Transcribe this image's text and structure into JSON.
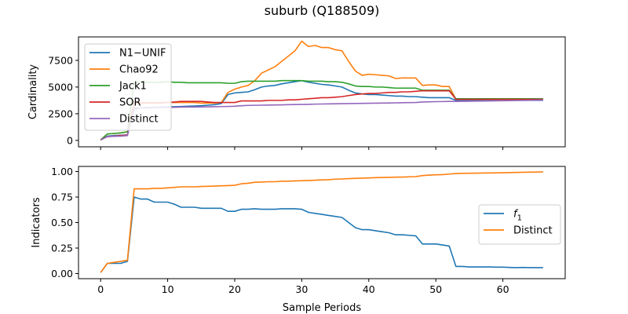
{
  "title": "suburb (Q188509)",
  "chart_data": [
    {
      "type": "line",
      "xlabel": "",
      "ylabel": "Cardinality",
      "xlim": [
        -3.3,
        69.3
      ],
      "ylim": [
        -600,
        9700
      ],
      "xticks": [
        0,
        10,
        20,
        30,
        40,
        50,
        60
      ],
      "show_xtick_labels": false,
      "yticks": [
        0,
        2500,
        5000,
        7500
      ],
      "ytick_labels": [
        "0",
        "2500",
        "5000",
        "7500"
      ],
      "legend_position": "top-left",
      "series": [
        {
          "name": "N1−UNIF",
          "color": "#1f77b4",
          "x": [
            0,
            1,
            2,
            3,
            4,
            5,
            6,
            7,
            8,
            9,
            10,
            11,
            12,
            13,
            14,
            15,
            16,
            17,
            18,
            19,
            20,
            21,
            22,
            23,
            24,
            25,
            26,
            27,
            28,
            29,
            30,
            31,
            32,
            33,
            34,
            35,
            36,
            37,
            38,
            39,
            40,
            41,
            42,
            43,
            44,
            45,
            46,
            47,
            48,
            49,
            50,
            51,
            52,
            53,
            54,
            55,
            56,
            57,
            58,
            59,
            60,
            61,
            62,
            63,
            64,
            65,
            66
          ],
          "y": [
            50,
            400,
            450,
            480,
            520,
            2900,
            3050,
            3080,
            3100,
            3120,
            3140,
            3160,
            3180,
            3200,
            3220,
            3250,
            3300,
            3350,
            3450,
            4300,
            4450,
            4500,
            4550,
            4750,
            5000,
            5100,
            5150,
            5300,
            5400,
            5500,
            5600,
            5450,
            5350,
            5250,
            5200,
            5100,
            5000,
            4700,
            4450,
            4350,
            4300,
            4300,
            4250,
            4200,
            4150,
            4150,
            4100,
            4100,
            4050,
            4000,
            4000,
            4000,
            4000,
            3750,
            3750,
            3750,
            3750,
            3750,
            3750,
            3750,
            3750,
            3750,
            3750,
            3750,
            3750,
            3750,
            3750
          ]
        },
        {
          "name": "Chao92",
          "color": "#ff7f0e",
          "x": [
            0,
            1,
            2,
            3,
            4,
            5,
            6,
            7,
            8,
            9,
            10,
            11,
            12,
            13,
            14,
            15,
            16,
            17,
            18,
            19,
            20,
            21,
            22,
            23,
            24,
            25,
            26,
            27,
            28,
            29,
            30,
            31,
            32,
            33,
            34,
            35,
            36,
            37,
            38,
            39,
            40,
            41,
            42,
            43,
            44,
            45,
            46,
            47,
            48,
            49,
            50,
            51,
            52,
            53,
            54,
            55,
            56,
            57,
            58,
            59,
            60,
            61,
            62,
            63,
            64,
            65,
            66
          ],
          "y": [
            50,
            600,
            650,
            700,
            800,
            3600,
            3550,
            3550,
            3550,
            3550,
            3550,
            3550,
            3550,
            3550,
            3550,
            3500,
            3500,
            3500,
            3550,
            4500,
            4800,
            5000,
            5150,
            5600,
            6300,
            6600,
            6900,
            7400,
            7900,
            8400,
            9300,
            8800,
            8900,
            8700,
            8700,
            8500,
            8400,
            7400,
            6500,
            6100,
            6200,
            6150,
            6100,
            6050,
            5800,
            5850,
            5850,
            5850,
            5150,
            5200,
            5200,
            5050,
            5050,
            3850,
            3850,
            3850,
            3850,
            3850,
            3850,
            3850,
            3850,
            3850,
            3850,
            3850,
            3850,
            3850,
            3850
          ]
        },
        {
          "name": "Jack1",
          "color": "#2ca02c",
          "x": [
            0,
            1,
            2,
            3,
            4,
            5,
            6,
            7,
            8,
            9,
            10,
            11,
            12,
            13,
            14,
            15,
            16,
            17,
            18,
            19,
            20,
            21,
            22,
            23,
            24,
            25,
            26,
            27,
            28,
            29,
            30,
            31,
            32,
            33,
            34,
            35,
            36,
            37,
            38,
            39,
            40,
            41,
            42,
            43,
            44,
            45,
            46,
            47,
            48,
            49,
            50,
            51,
            52,
            53,
            54,
            55,
            56,
            57,
            58,
            59,
            60,
            61,
            62,
            63,
            64,
            65,
            66
          ],
          "y": [
            50,
            600,
            650,
            700,
            800,
            5400,
            5450,
            5450,
            5450,
            5450,
            5500,
            5450,
            5450,
            5400,
            5400,
            5400,
            5400,
            5400,
            5400,
            5350,
            5350,
            5500,
            5550,
            5550,
            5550,
            5550,
            5550,
            5600,
            5600,
            5600,
            5600,
            5550,
            5550,
            5550,
            5500,
            5500,
            5450,
            5300,
            5100,
            5050,
            5050,
            5000,
            5000,
            4950,
            4900,
            4900,
            4900,
            4900,
            4700,
            4700,
            4700,
            4700,
            4700,
            3900,
            3900,
            3900,
            3900,
            3900,
            3900,
            3900,
            3900,
            3900,
            3900,
            3900,
            3900,
            3900,
            3900
          ]
        },
        {
          "name": "SOR",
          "color": "#d62728",
          "x": [
            0,
            1,
            2,
            3,
            4,
            5,
            6,
            7,
            8,
            9,
            10,
            11,
            12,
            13,
            14,
            15,
            16,
            17,
            18,
            19,
            20,
            21,
            22,
            23,
            24,
            25,
            26,
            27,
            28,
            29,
            30,
            31,
            32,
            33,
            34,
            35,
            36,
            37,
            38,
            39,
            40,
            41,
            42,
            43,
            44,
            45,
            46,
            47,
            48,
            49,
            50,
            51,
            52,
            53,
            54,
            55,
            56,
            57,
            58,
            59,
            60,
            61,
            62,
            63,
            64,
            65,
            66
          ],
          "y": [
            50,
            350,
            400,
            450,
            500,
            3500,
            3500,
            3500,
            3500,
            3500,
            3550,
            3600,
            3650,
            3650,
            3650,
            3650,
            3600,
            3550,
            3550,
            3550,
            3550,
            3700,
            3700,
            3700,
            3700,
            3750,
            3750,
            3750,
            3800,
            3800,
            3850,
            3900,
            3950,
            4000,
            4000,
            4050,
            4100,
            4200,
            4300,
            4350,
            4400,
            4400,
            4450,
            4500,
            4500,
            4550,
            4550,
            4600,
            4650,
            4650,
            4650,
            4650,
            4650,
            3850,
            3850,
            3850,
            3850,
            3850,
            3850,
            3850,
            3850,
            3850,
            3850,
            3850,
            3850,
            3850,
            3850
          ]
        },
        {
          "name": "Distinct",
          "color": "#9467bd",
          "x": [
            0,
            1,
            2,
            3,
            4,
            5,
            6,
            7,
            8,
            9,
            10,
            11,
            12,
            13,
            14,
            15,
            16,
            17,
            18,
            19,
            20,
            21,
            22,
            23,
            24,
            25,
            26,
            27,
            28,
            29,
            30,
            31,
            32,
            33,
            34,
            35,
            36,
            37,
            38,
            39,
            40,
            41,
            42,
            43,
            44,
            45,
            46,
            47,
            48,
            49,
            50,
            51,
            52,
            53,
            54,
            55,
            56,
            57,
            58,
            59,
            60,
            61,
            62,
            63,
            64,
            65,
            66
          ],
          "y": [
            30,
            350,
            380,
            400,
            450,
            3050,
            3050,
            3050,
            3070,
            3080,
            3080,
            3100,
            3120,
            3130,
            3130,
            3140,
            3150,
            3160,
            3170,
            3180,
            3200,
            3250,
            3280,
            3290,
            3300,
            3310,
            3320,
            3330,
            3350,
            3360,
            3370,
            3380,
            3400,
            3410,
            3420,
            3430,
            3440,
            3450,
            3460,
            3470,
            3480,
            3490,
            3500,
            3510,
            3520,
            3530,
            3540,
            3550,
            3600,
            3620,
            3630,
            3640,
            3650,
            3650,
            3660,
            3670,
            3680,
            3690,
            3700,
            3710,
            3720,
            3730,
            3740,
            3750,
            3760,
            3770,
            3780
          ]
        }
      ]
    },
    {
      "type": "line",
      "xlabel": "Sample Periods",
      "ylabel": "Indicators",
      "xlim": [
        -3.3,
        69.3
      ],
      "ylim": [
        -0.05,
        1.05
      ],
      "xticks": [
        0,
        10,
        20,
        30,
        40,
        50,
        60
      ],
      "xtick_labels": [
        "0",
        "10",
        "20",
        "30",
        "40",
        "50",
        "60"
      ],
      "show_xtick_labels": true,
      "yticks": [
        0,
        0.25,
        0.5,
        0.75,
        1.0
      ],
      "ytick_labels": [
        "0.00",
        "0.25",
        "0.50",
        "0.75",
        "1.00"
      ],
      "legend_position": "right",
      "series": [
        {
          "name": "f1",
          "color": "#1f77b4",
          "x": [
            0,
            1,
            2,
            3,
            4,
            5,
            6,
            7,
            8,
            9,
            10,
            11,
            12,
            13,
            14,
            15,
            16,
            17,
            18,
            19,
            20,
            21,
            22,
            23,
            24,
            25,
            26,
            27,
            28,
            29,
            30,
            31,
            32,
            33,
            34,
            35,
            36,
            37,
            38,
            39,
            40,
            41,
            42,
            43,
            44,
            45,
            46,
            47,
            48,
            49,
            50,
            51,
            52,
            53,
            54,
            55,
            56,
            57,
            58,
            59,
            60,
            61,
            62,
            63,
            64,
            65,
            66
          ],
          "y": [
            0.01,
            0.1,
            0.1,
            0.1,
            0.12,
            0.75,
            0.73,
            0.73,
            0.7,
            0.7,
            0.7,
            0.68,
            0.65,
            0.65,
            0.65,
            0.64,
            0.64,
            0.64,
            0.64,
            0.61,
            0.61,
            0.63,
            0.63,
            0.635,
            0.63,
            0.63,
            0.63,
            0.635,
            0.635,
            0.635,
            0.63,
            0.6,
            0.59,
            0.58,
            0.57,
            0.56,
            0.55,
            0.5,
            0.45,
            0.43,
            0.43,
            0.42,
            0.41,
            0.4,
            0.38,
            0.38,
            0.375,
            0.37,
            0.29,
            0.29,
            0.29,
            0.28,
            0.27,
            0.07,
            0.07,
            0.065,
            0.065,
            0.065,
            0.065,
            0.063,
            0.063,
            0.06,
            0.058,
            0.06,
            0.058,
            0.058,
            0.058
          ]
        },
        {
          "name": "Distinct",
          "color": "#ff7f0e",
          "x": [
            0,
            1,
            2,
            3,
            4,
            5,
            6,
            7,
            8,
            9,
            10,
            11,
            12,
            13,
            14,
            15,
            16,
            17,
            18,
            19,
            20,
            21,
            22,
            23,
            24,
            25,
            26,
            27,
            28,
            29,
            30,
            31,
            32,
            33,
            34,
            35,
            36,
            37,
            38,
            39,
            40,
            41,
            42,
            43,
            44,
            45,
            46,
            47,
            48,
            49,
            50,
            51,
            52,
            53,
            54,
            55,
            56,
            57,
            58,
            59,
            60,
            61,
            62,
            63,
            64,
            65,
            66
          ],
          "y": [
            0.01,
            0.1,
            0.11,
            0.12,
            0.13,
            0.83,
            0.83,
            0.83,
            0.835,
            0.835,
            0.84,
            0.845,
            0.85,
            0.85,
            0.85,
            0.853,
            0.855,
            0.857,
            0.86,
            0.862,
            0.865,
            0.88,
            0.885,
            0.895,
            0.897,
            0.9,
            0.9,
            0.905,
            0.905,
            0.908,
            0.91,
            0.912,
            0.915,
            0.918,
            0.92,
            0.925,
            0.927,
            0.93,
            0.933,
            0.935,
            0.937,
            0.94,
            0.942,
            0.943,
            0.945,
            0.946,
            0.948,
            0.95,
            0.96,
            0.965,
            0.968,
            0.97,
            0.975,
            0.98,
            0.982,
            0.983,
            0.984,
            0.985,
            0.986,
            0.987,
            0.988,
            0.99,
            0.991,
            0.993,
            0.994,
            0.995,
            0.997
          ]
        }
      ]
    }
  ]
}
